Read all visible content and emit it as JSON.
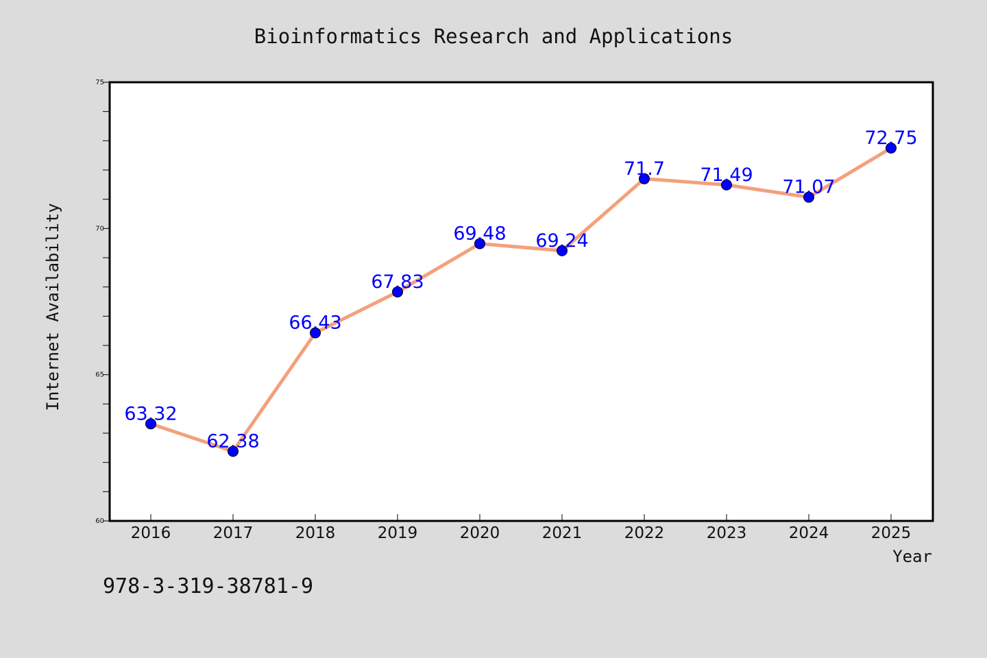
{
  "colors": {
    "background": "#dcdcdc",
    "plot_background": "#ffffff",
    "line": "#f4a07c",
    "marker": "#0000ff",
    "label": "#0000ff",
    "text": "#111111"
  },
  "footer_text": "978-3-319-38781-9",
  "chart_data": {
    "type": "line",
    "title": "Bioinformatics Research and Applications",
    "xlabel": "Year",
    "ylabel": "Internet Availability",
    "categories": [
      "2016",
      "2017",
      "2018",
      "2019",
      "2020",
      "2021",
      "2022",
      "2023",
      "2024",
      "2025"
    ],
    "series": [
      {
        "values": [
          63.32,
          62.38,
          66.43,
          67.83,
          69.48,
          69.24,
          71.7,
          71.49,
          71.07,
          72.75
        ],
        "data_labels": [
          "63.32",
          "62.38",
          "66.43",
          "67.83",
          "69.48",
          "69.24",
          "71.7",
          "71.49",
          "71.07",
          "72.75"
        ]
      }
    ],
    "ylim": [
      60,
      75
    ],
    "yticks": [
      60,
      65,
      70,
      75
    ],
    "y_minor_step": 1,
    "grid": false,
    "legend": "none"
  }
}
